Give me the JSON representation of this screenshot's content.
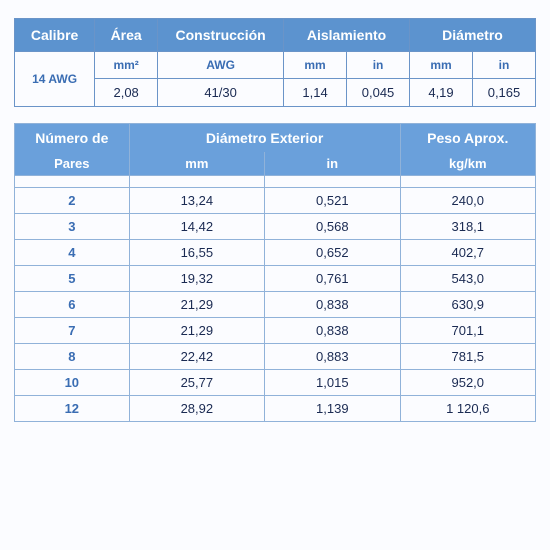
{
  "colors": {
    "header_bg_top": "#5c93cf",
    "header_bg_bottom": "#6aa0db",
    "header_fg": "#ffffff",
    "border_top": "#6a94c8",
    "border_bottom": "#90b2d9",
    "unit_fg": "#3a6db3",
    "body_fg": "#1a2a52",
    "page_bg": "#fbfcff"
  },
  "top": {
    "heads": {
      "calibre": "Calibre",
      "area": "Área",
      "construccion": "Construcción",
      "aislamiento": "Aislamiento",
      "diametro": "Diámetro"
    },
    "units": {
      "area": "mm²",
      "construccion": "AWG",
      "aisla_mm": "mm",
      "aisla_in": "in",
      "diam_mm": "mm",
      "diam_in": "in"
    },
    "row": {
      "calibre": "14 AWG",
      "area": "2,08",
      "construccion": "41/30",
      "aisla_mm": "1,14",
      "aisla_in": "0,045",
      "diam_mm": "4,19",
      "diam_in": "0,165"
    },
    "col_widths_pct": [
      14,
      11,
      22,
      11,
      11,
      11,
      11
    ]
  },
  "bottom": {
    "heads": {
      "pares_l1": "Número de",
      "pares_l2": "Pares",
      "ext_l1": "Diámetro Exterior",
      "ext_mm": "mm",
      "ext_in": "in",
      "peso_l1": "Peso Aprox.",
      "peso_l2": "kg/km"
    },
    "col_widths_pct": [
      22,
      26,
      26,
      26
    ],
    "rows": [
      {
        "pares": "2",
        "mm": "13,24",
        "in": "0,521",
        "peso": "240,0"
      },
      {
        "pares": "3",
        "mm": "14,42",
        "in": "0,568",
        "peso": "318,1"
      },
      {
        "pares": "4",
        "mm": "16,55",
        "in": "0,652",
        "peso": "402,7"
      },
      {
        "pares": "5",
        "mm": "19,32",
        "in": "0,761",
        "peso": "543,0"
      },
      {
        "pares": "6",
        "mm": "21,29",
        "in": "0,838",
        "peso": "630,9"
      },
      {
        "pares": "7",
        "mm": "21,29",
        "in": "0,838",
        "peso": "701,1"
      },
      {
        "pares": "8",
        "mm": "22,42",
        "in": "0,883",
        "peso": "781,5"
      },
      {
        "pares": "10",
        "mm": "25,77",
        "in": "1,015",
        "peso": "952,0"
      },
      {
        "pares": "12",
        "mm": "28,92",
        "in": "1,139",
        "peso": "1 120,6"
      }
    ]
  }
}
